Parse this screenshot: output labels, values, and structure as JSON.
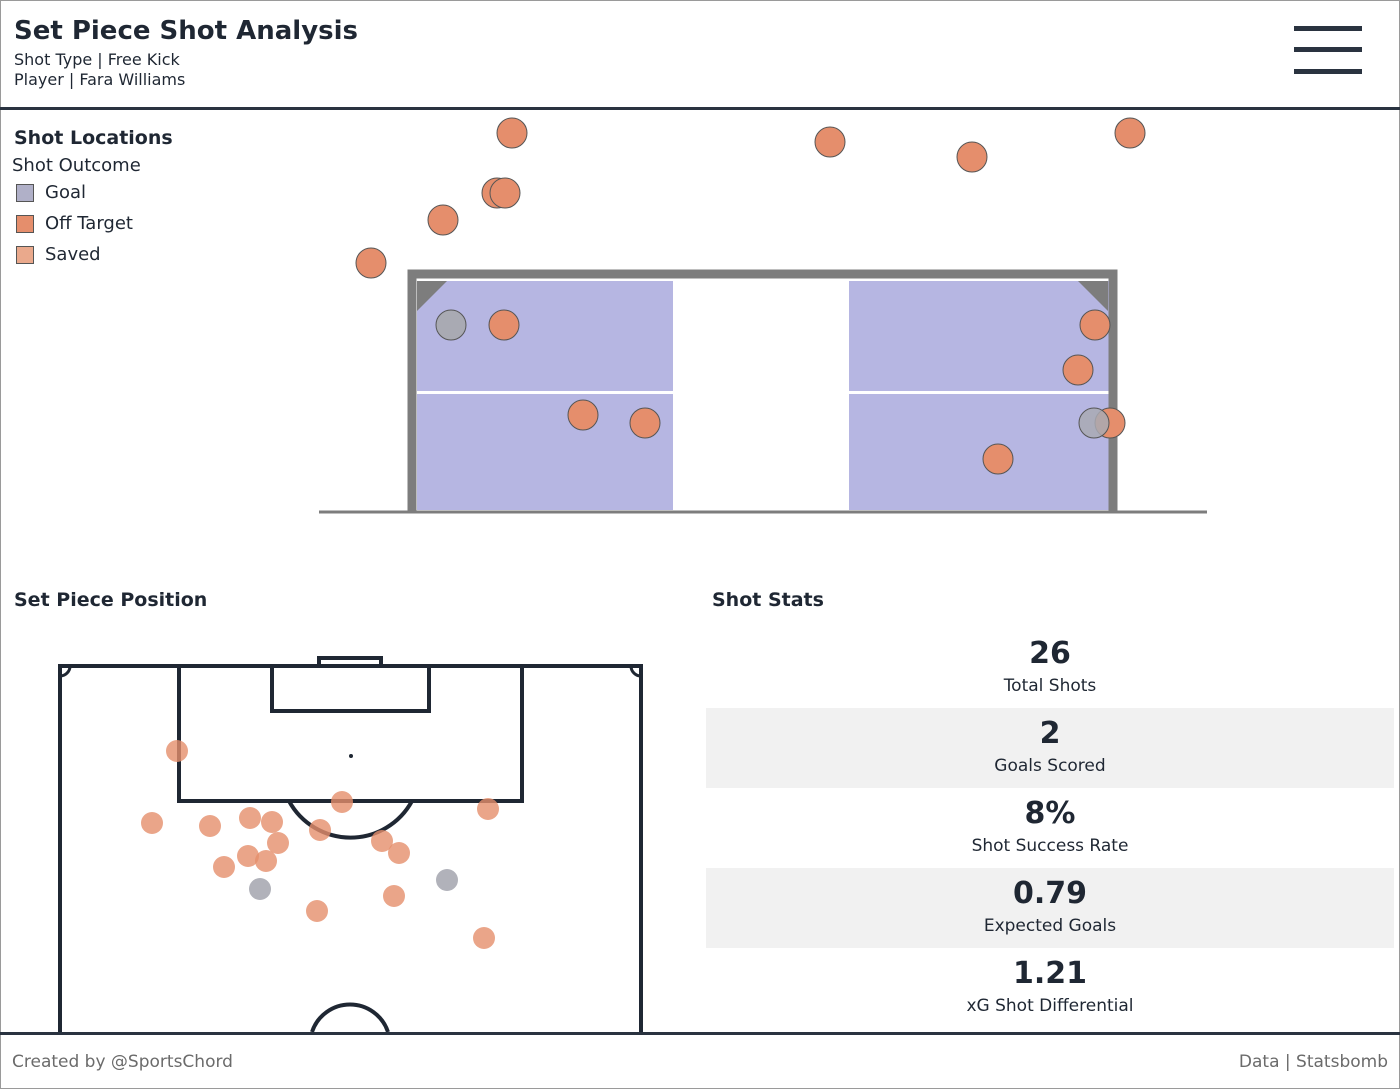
{
  "header": {
    "title": "Set Piece Shot Analysis",
    "shot_type_line": "Shot Type | Free Kick",
    "player_line": "Player | Fara Williams",
    "menu_icon": "hamburger-menu-icon"
  },
  "shot_locations": {
    "title": "Shot Locations",
    "legend_title": "Shot Outcome",
    "legend": [
      {
        "label": "Goal",
        "color": "#a9aab3"
      },
      {
        "label": "Off Target",
        "color": "#e58e6c"
      },
      {
        "label": "Saved",
        "color": "#e8a688"
      }
    ]
  },
  "set_piece_position": {
    "title": "Set Piece Position"
  },
  "shot_stats": {
    "title": "Shot Stats",
    "items": [
      {
        "value": "26",
        "label": "Total Shots"
      },
      {
        "value": "2",
        "label": "Goals Scored"
      },
      {
        "value": "8%",
        "label": "Shot Success Rate"
      },
      {
        "value": "0.79",
        "label": "Expected Goals"
      },
      {
        "value": "1.21",
        "label": "xG Shot Differential"
      }
    ]
  },
  "footer": {
    "credit": "Created by @SportsChord",
    "source": "Data | Statsbomb"
  },
  "colors": {
    "goal": "#a9aab3",
    "off_target": "#e58e6c",
    "saved": "#e8a688",
    "goal_zone": "#b6b6e2",
    "frame": "#2a3340"
  }
}
